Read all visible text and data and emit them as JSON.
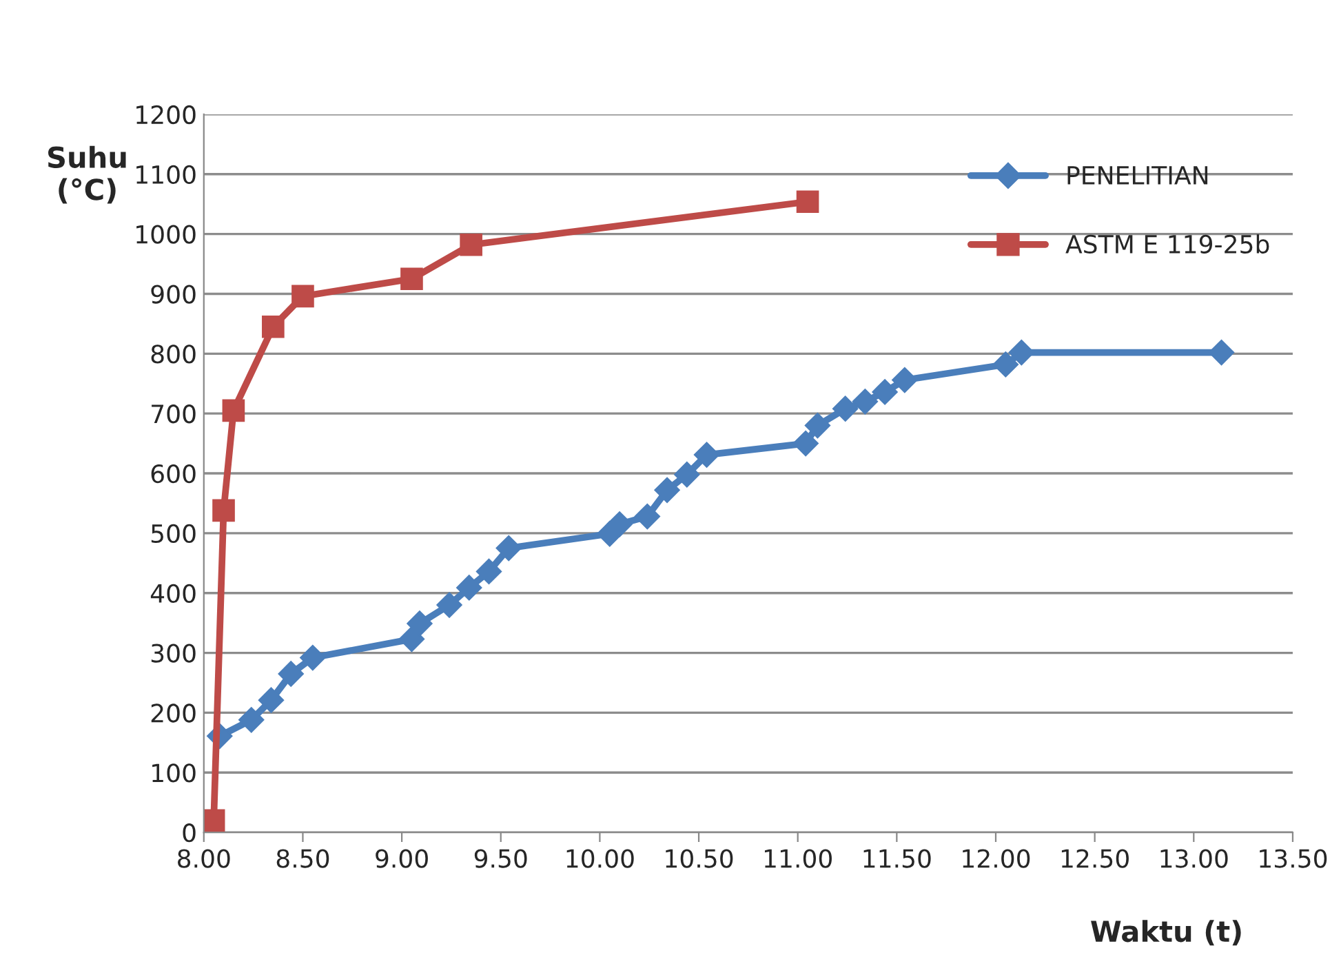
{
  "chart_data": {
    "type": "line",
    "xlabel": "Waktu (t)",
    "ylabel": "Suhu\n(°C)",
    "series": [
      {
        "name": "PENELITIAN",
        "color": "#4a7ebb",
        "marker": "diamond",
        "x": [
          8.08,
          8.24,
          8.34,
          8.44,
          8.55,
          9.05,
          9.09,
          9.24,
          9.34,
          9.44,
          9.54,
          10.05,
          10.1,
          10.24,
          10.34,
          10.44,
          10.54,
          11.04,
          11.1,
          11.24,
          11.34,
          11.44,
          11.54,
          12.05,
          12.13,
          13.14
        ],
        "values": [
          161,
          188,
          221,
          265,
          292,
          323,
          349,
          380,
          409,
          436,
          475,
          499,
          515,
          528,
          572,
          598,
          631,
          650,
          680,
          708,
          720,
          736,
          756,
          782,
          802,
          802
        ]
      },
      {
        "name": "ASTM E 119-25b",
        "color": "#be4b48",
        "marker": "square",
        "x": [
          8.05,
          8.1,
          8.15,
          8.35,
          8.5,
          9.05,
          9.35,
          11.05
        ],
        "values": [
          20,
          538,
          705,
          845,
          896,
          925,
          982,
          1054
        ]
      }
    ],
    "xlim": [
      8.0,
      13.5
    ],
    "xticks": [
      {
        "value": 8.0,
        "label": "8.00"
      },
      {
        "value": 8.5,
        "label": "8.50"
      },
      {
        "value": 9.0,
        "label": "9.00"
      },
      {
        "value": 9.5,
        "label": "9.50"
      },
      {
        "value": 10.0,
        "label": "10.00"
      },
      {
        "value": 10.5,
        "label": "10.50"
      },
      {
        "value": 11.0,
        "label": "11.00"
      },
      {
        "value": 11.5,
        "label": "11.50"
      },
      {
        "value": 12.0,
        "label": "12.00"
      },
      {
        "value": 12.5,
        "label": "12.50"
      },
      {
        "value": 13.0,
        "label": "13.00"
      },
      {
        "value": 13.5,
        "label": "13.50"
      }
    ],
    "ylim": [
      0,
      1200
    ],
    "yticks": [
      0,
      100,
      200,
      300,
      400,
      500,
      600,
      700,
      800,
      900,
      1000,
      1100,
      1200
    ],
    "grid": "y",
    "legend": "top right",
    "line_style": "solid"
  }
}
